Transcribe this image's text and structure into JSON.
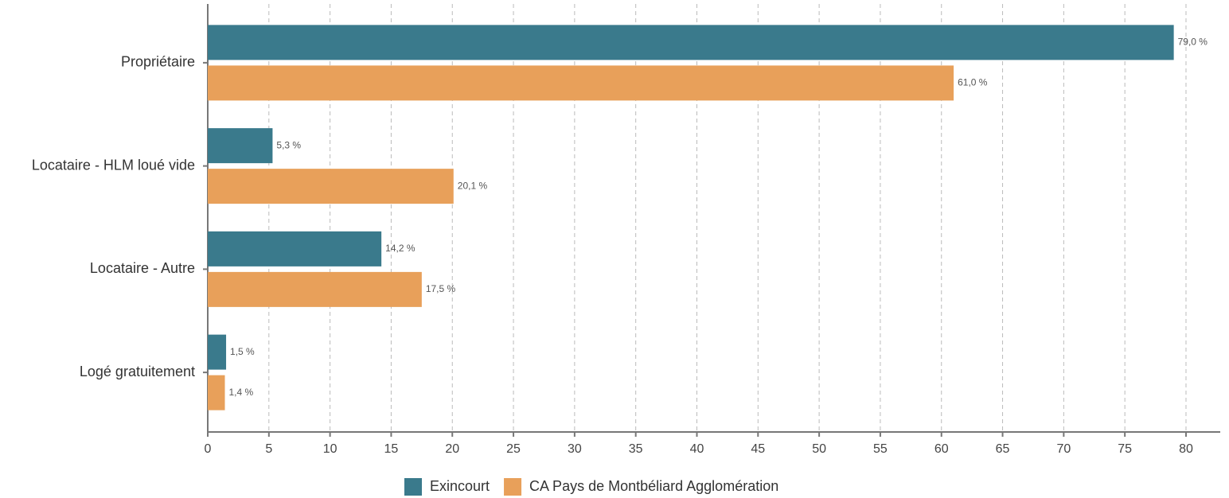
{
  "chart_data": {
    "type": "hbar",
    "categories": [
      "Propriétaire",
      "Locataire - HLM loué vide",
      "Locataire - Autre",
      "Logé gratuitement"
    ],
    "series": [
      {
        "name": "Exincourt",
        "color": "#3a7a8c",
        "values": [
          79.0,
          5.3,
          14.2,
          1.5
        ],
        "value_labels": [
          "79,0 %",
          "5,3 %",
          "14,2 %",
          "1,5 %"
        ]
      },
      {
        "name": "CA Pays de Montbéliard Agglomération",
        "color": "#e8a05a",
        "values": [
          61.0,
          20.1,
          17.5,
          1.4
        ],
        "value_labels": [
          "61,0 %",
          "20,1 %",
          "17,5 %",
          "1,4 %"
        ]
      }
    ],
    "xlim": [
      0,
      82.8
    ],
    "xticks": [
      0,
      5,
      10,
      15,
      20,
      25,
      30,
      35,
      40,
      45,
      50,
      55,
      60,
      65,
      70,
      75,
      80
    ],
    "grid": true,
    "legend": "bottom"
  }
}
